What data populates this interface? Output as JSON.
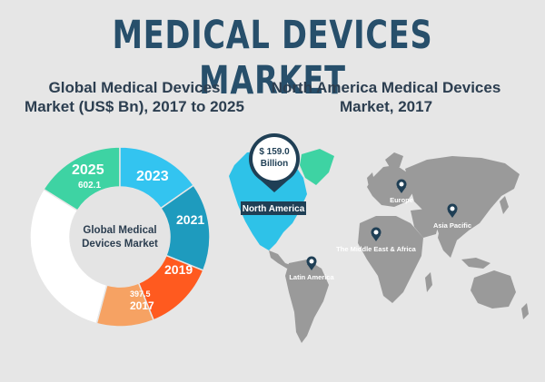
{
  "main_title": "MEDICAL DEVICES MARKET",
  "left_subtitle_line1": "Global Medical Devices",
  "left_subtitle_line2": "Market (US$ Bn), 2017 to 2025",
  "right_subtitle_line1": "North America Medical Devices",
  "right_subtitle_line2": "Market, 2017",
  "donut_center_line1": "Global Medical",
  "donut_center_line2": "Devices Market",
  "colors": {
    "title": "#274f6b",
    "y2025": "#3ed3a3",
    "y2023": "#33c4f0",
    "y2021": "#1e9bbe",
    "y2019": "#ff5a1f",
    "y2017": "#f6a263",
    "remainder": "#ffffff",
    "map_land": "#9a9a9a",
    "north_america": "#2ec2e8",
    "greenland": "#3ed3a3",
    "pin": "#1f3f55"
  },
  "chart_data": {
    "type": "pie",
    "title": "Global Medical Devices Market (US$ Bn), 2017 to 2025",
    "categories": [
      "2025",
      "2023",
      "2021",
      "2019",
      "2017"
    ],
    "values": [
      602.1,
      null,
      null,
      null,
      397.5
    ],
    "value_labels": [
      "602.1",
      "",
      "",
      "",
      "397.5"
    ]
  },
  "map": {
    "callout_value_line1": "$ 159.0",
    "callout_value_line2": "Billion",
    "highlight_label": "North America",
    "pins": [
      {
        "label": "Europe"
      },
      {
        "label": "Asia Pacific"
      },
      {
        "label": "The Middle East & Africa"
      },
      {
        "label": "Latin America"
      }
    ]
  }
}
